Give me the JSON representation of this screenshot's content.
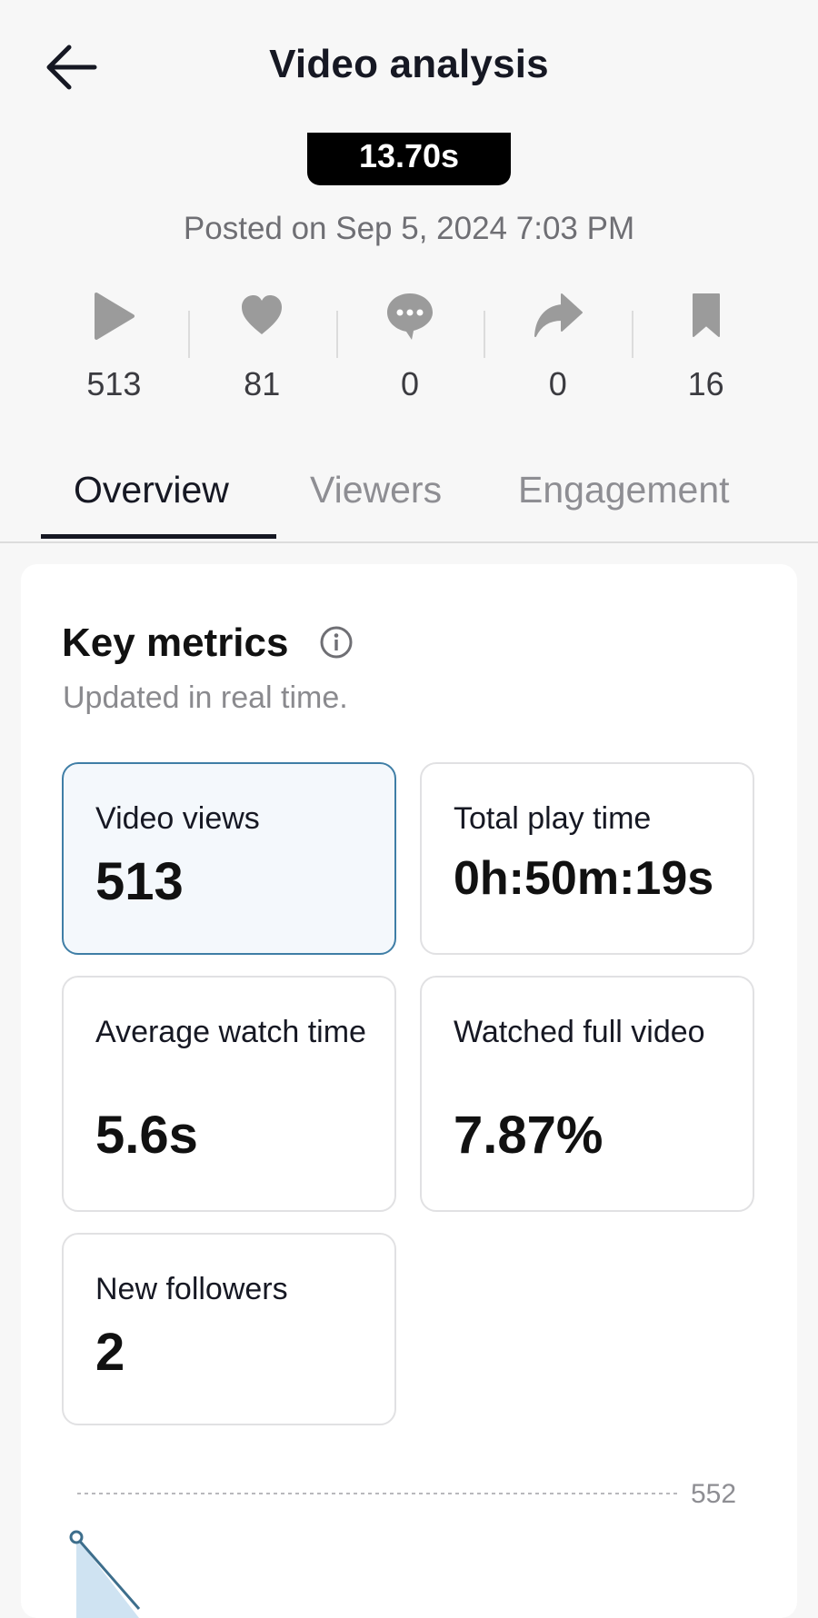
{
  "header": {
    "title": "Video analysis"
  },
  "video": {
    "duration": "13.70s",
    "posted": "Posted on Sep 5, 2024 7:03 PM"
  },
  "stats": {
    "views": "513",
    "likes": "81",
    "comments": "0",
    "shares": "0",
    "saves": "16"
  },
  "tabs": [
    {
      "label": "Overview",
      "active": true
    },
    {
      "label": "Viewers",
      "active": false
    },
    {
      "label": "Engagement",
      "active": false
    }
  ],
  "key_metrics": {
    "title": "Key metrics",
    "subtitle": "Updated in real time.",
    "items": [
      {
        "label": "Video views",
        "value": "513",
        "selected": true
      },
      {
        "label": "Total play time",
        "value": "0h:50m:19s",
        "selected": false
      },
      {
        "label": "Average watch time",
        "value": "5.6s",
        "selected": false
      },
      {
        "label": "Watched full video",
        "value": "7.87%",
        "selected": false
      },
      {
        "label": "New followers",
        "value": "2",
        "selected": false
      }
    ]
  },
  "chart": {
    "max_label": "552"
  },
  "colors": {
    "accent_selected_border": "#3f7ea6",
    "selected_bg": "#f4f8fc",
    "chart_line": "#3d6e8c",
    "chart_fill": "#cfe3f2"
  }
}
